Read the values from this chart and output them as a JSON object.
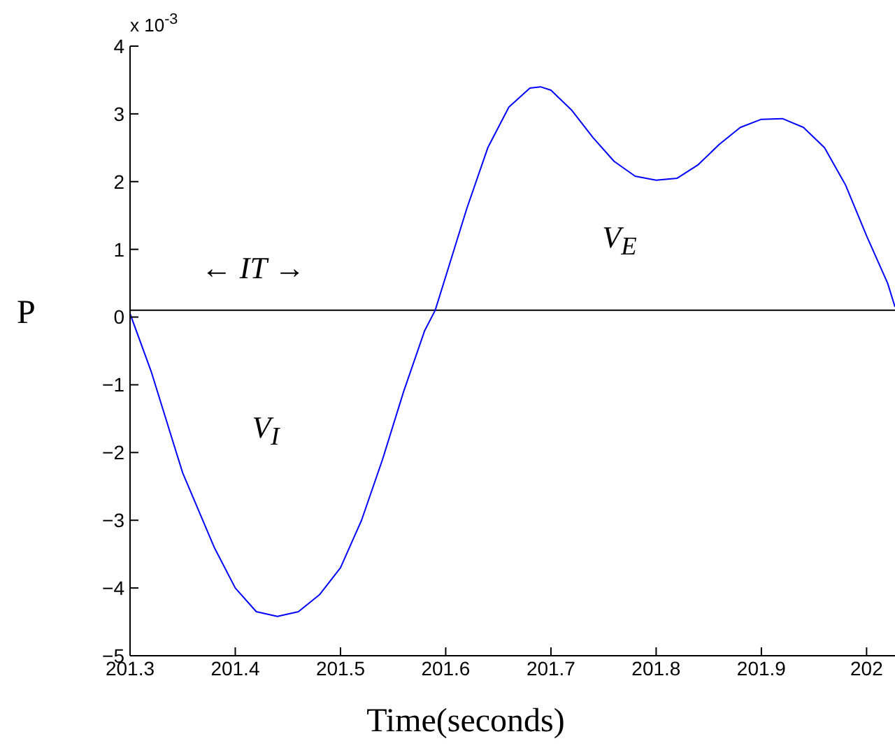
{
  "chart_data": {
    "type": "line",
    "xlabel": "Time(seconds)",
    "ylabel": "P",
    "x": [
      201.3,
      201.32,
      201.35,
      201.38,
      201.4,
      201.42,
      201.44,
      201.46,
      201.48,
      201.5,
      201.52,
      201.54,
      201.56,
      201.58,
      201.59,
      201.6,
      201.62,
      201.64,
      201.66,
      201.68,
      201.69,
      201.7,
      201.72,
      201.74,
      201.76,
      201.78,
      201.8,
      201.82,
      201.84,
      201.86,
      201.88,
      201.9,
      201.92,
      201.94,
      201.96,
      201.98,
      202.0,
      202.02,
      202.027
    ],
    "series": [
      {
        "color": "#0000ff",
        "values": [
          0.05,
          -0.8,
          -2.3,
          -3.4,
          -4.0,
          -4.35,
          -4.42,
          -4.35,
          -4.1,
          -3.7,
          -3.0,
          -2.1,
          -1.1,
          -0.2,
          0.1,
          0.6,
          1.6,
          2.5,
          3.1,
          3.38,
          3.4,
          3.35,
          3.05,
          2.65,
          2.3,
          2.08,
          2.02,
          2.05,
          2.25,
          2.55,
          2.8,
          2.92,
          2.93,
          2.8,
          2.5,
          1.95,
          1.2,
          0.5,
          0.15
        ]
      }
    ],
    "xlim": [
      201.3,
      202.027
    ],
    "xticks": [
      201.3,
      201.4,
      201.5,
      201.6,
      201.7,
      201.8,
      201.9,
      202
    ],
    "ylim": [
      -5,
      4
    ],
    "yticks": [
      -5,
      -4,
      -3,
      -2,
      -1,
      0,
      1,
      2,
      3,
      4
    ],
    "ref_lines": [
      {
        "axis": "y",
        "value": 0.1,
        "color": "#000000"
      }
    ],
    "annotations": [
      "x 10$^{-3}$",
      "← IT →",
      "V$_{I}$",
      "V$_{E}$"
    ],
    "grid": false,
    "marker": "none",
    "line_style": "solid"
  }
}
